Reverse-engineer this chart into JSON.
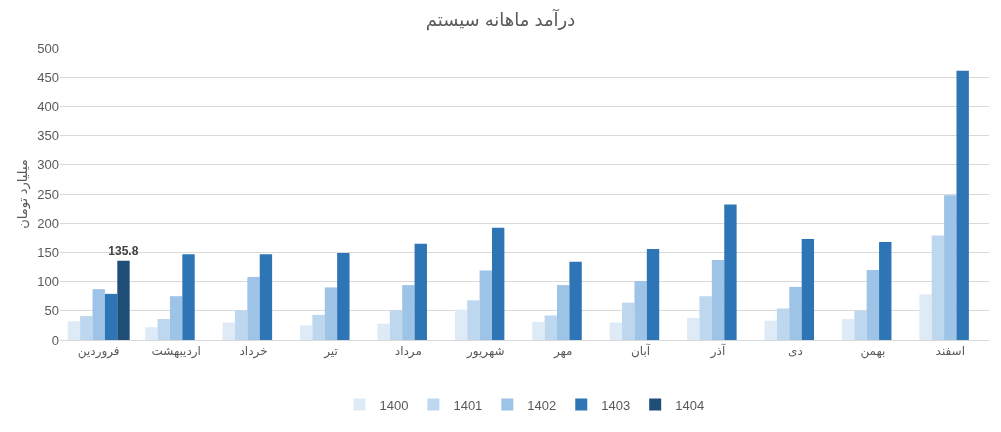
{
  "chart_data": {
    "type": "bar",
    "title": "درآمد ماهانه سیستم",
    "ylabel": "میلیارد تومان",
    "categories": [
      "فروردین",
      "اردیبهشت",
      "خرداد",
      "تیر",
      "مرداد",
      "شهریور",
      "مهر",
      "آبان",
      "آذر",
      "دی",
      "بهمن",
      "اسفند"
    ],
    "series": [
      {
        "name": "1400",
        "color": "#deebf7",
        "values": [
          32,
          22,
          30,
          25,
          28,
          52,
          31,
          30,
          38,
          33,
          36,
          78
        ]
      },
      {
        "name": "1401",
        "color": "#bdd7ee",
        "values": [
          41,
          36,
          51,
          43,
          51,
          68,
          42,
          64,
          75,
          54,
          50,
          179
        ]
      },
      {
        "name": "1402",
        "color": "#9dc3e6",
        "values": [
          87,
          75,
          108,
          90,
          94,
          119,
          94,
          101,
          137,
          91,
          120,
          248
        ]
      },
      {
        "name": "1403",
        "color": "#2e75b6",
        "values": [
          79,
          147,
          147,
          149,
          165,
          192,
          134,
          156,
          232,
          173,
          168,
          461
        ]
      },
      {
        "name": "1404",
        "color": "#1f4e79",
        "values": [
          135.8,
          null,
          null,
          null,
          null,
          null,
          null,
          null,
          null,
          null,
          null,
          null
        ],
        "value_labels": [
          "135.8",
          null,
          null,
          null,
          null,
          null,
          null,
          null,
          null,
          null,
          null,
          null
        ]
      }
    ],
    "ylim": [
      0,
      500
    ],
    "yticks": [
      0,
      50,
      100,
      150,
      200,
      250,
      300,
      350,
      400,
      450,
      500
    ],
    "grid": "y",
    "legend": "bottom"
  }
}
